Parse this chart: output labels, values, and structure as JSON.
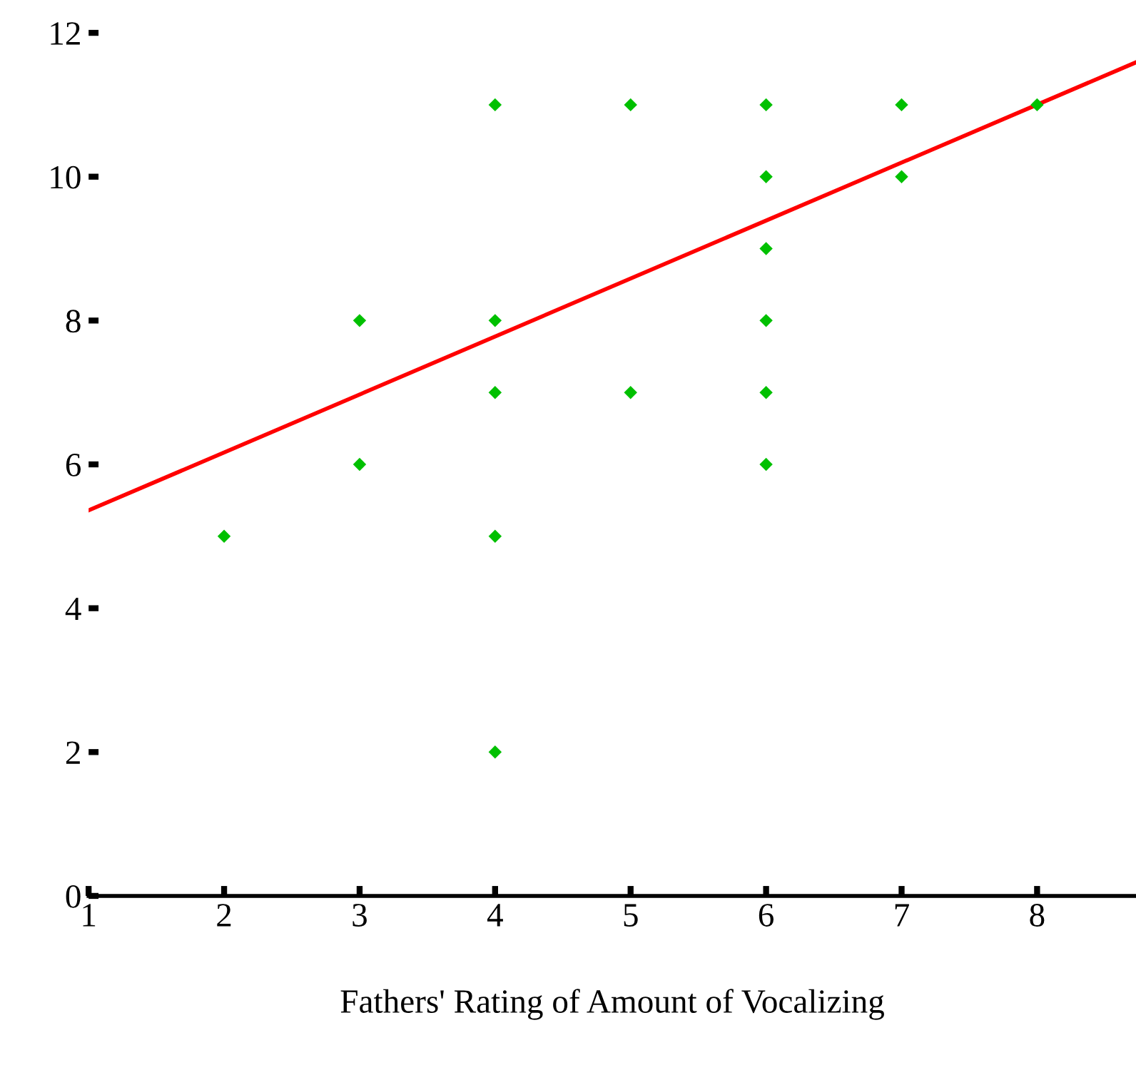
{
  "chart_data": {
    "type": "scatter",
    "xlabel": "Fathers' Rating of Amount of Vocalizing",
    "xlim": [
      1,
      8.73
    ],
    "xticks": [
      1,
      2,
      3,
      4,
      5,
      6,
      7,
      8
    ],
    "ylim": [
      0,
      12
    ],
    "yticks": [
      0,
      2,
      4,
      6,
      8,
      10,
      12
    ],
    "grid": false,
    "series": [
      {
        "color": "#00c000",
        "marker": "diamond",
        "x": [
          2,
          3,
          3,
          4,
          4,
          4,
          4,
          4,
          5,
          5,
          6,
          6,
          6,
          6,
          6,
          6,
          7,
          7,
          8
        ],
        "values": [
          5,
          8,
          6,
          11,
          8,
          7,
          5,
          2,
          11,
          7,
          11,
          10,
          9,
          8,
          7,
          6,
          11,
          10,
          11
        ]
      },
      {
        "type": "line",
        "color": "#ff0000",
        "x": [
          1,
          8.73
        ],
        "values": [
          5.36,
          11.59
        ]
      }
    ]
  }
}
